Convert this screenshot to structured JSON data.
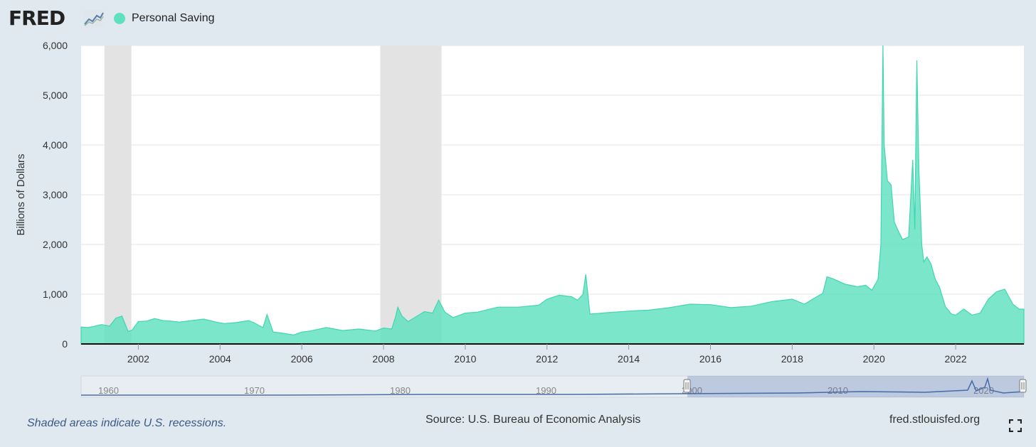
{
  "header": {
    "logo_text": "FRED",
    "legend_label": "Personal Saving",
    "series_color": "#5fe1c0"
  },
  "footer": {
    "recession_note": "Shaded areas indicate U.S. recessions.",
    "source": "Source: U.S. Bureau of Economic Analysis",
    "site": "fred.stlouisfed.org"
  },
  "chart_data": {
    "type": "area",
    "ylabel": "Billions of Dollars",
    "ylim": [
      0,
      6000
    ],
    "xlim": [
      2000.6,
      2023.67
    ],
    "yticks": [
      "0",
      "1,000",
      "2,000",
      "3,000",
      "4,000",
      "5,000",
      "6,000"
    ],
    "xticks": [
      "2002",
      "2004",
      "2006",
      "2008",
      "2010",
      "2012",
      "2014",
      "2016",
      "2018",
      "2020",
      "2022"
    ],
    "grid": true,
    "recessions": [
      [
        2001.17,
        2001.83
      ],
      [
        2007.92,
        2009.42
      ]
    ],
    "series": [
      {
        "name": "Personal Saving",
        "x": [
          2000.6,
          2000.75,
          2000.9,
          2001.0,
          2001.1,
          2001.3,
          2001.45,
          2001.6,
          2001.75,
          2001.85,
          2002.0,
          2002.2,
          2002.4,
          2002.6,
          2002.8,
          2003.0,
          2003.3,
          2003.6,
          2003.9,
          2004.1,
          2004.4,
          2004.7,
          2004.85,
          2004.95,
          2005.05,
          2005.15,
          2005.3,
          2005.5,
          2005.8,
          2006.0,
          2006.2,
          2006.6,
          2007.0,
          2007.4,
          2007.8,
          2008.0,
          2008.2,
          2008.3,
          2008.35,
          2008.45,
          2008.6,
          2008.8,
          2009.0,
          2009.2,
          2009.35,
          2009.5,
          2009.7,
          2010.0,
          2010.3,
          2010.8,
          2011.3,
          2011.8,
          2012.0,
          2012.3,
          2012.6,
          2012.75,
          2012.88,
          2012.95,
          2013.05,
          2013.5,
          2014.0,
          2014.5,
          2015.0,
          2015.5,
          2016.0,
          2016.5,
          2017.0,
          2017.5,
          2018.0,
          2018.3,
          2018.5,
          2018.75,
          2018.85,
          2019.0,
          2019.3,
          2019.6,
          2019.8,
          2019.95,
          2020.1,
          2020.17,
          2020.22,
          2020.25,
          2020.33,
          2020.42,
          2020.5,
          2020.58,
          2020.7,
          2020.85,
          2020.95,
          2021.0,
          2021.05,
          2021.1,
          2021.17,
          2021.22,
          2021.3,
          2021.4,
          2021.5,
          2021.6,
          2021.75,
          2021.9,
          2022.0,
          2022.2,
          2022.4,
          2022.6,
          2022.8,
          2023.0,
          2023.2,
          2023.4,
          2023.55,
          2023.67
        ],
        "values": [
          340,
          330,
          350,
          370,
          390,
          360,
          520,
          560,
          250,
          280,
          450,
          460,
          510,
          470,
          460,
          440,
          470,
          500,
          440,
          410,
          430,
          470,
          420,
          370,
          330,
          590,
          240,
          220,
          180,
          240,
          260,
          330,
          270,
          300,
          260,
          320,
          300,
          560,
          740,
          560,
          450,
          550,
          650,
          620,
          880,
          640,
          530,
          620,
          640,
          740,
          740,
          780,
          900,
          980,
          950,
          880,
          1000,
          1400,
          600,
          630,
          660,
          680,
          730,
          800,
          790,
          730,
          760,
          850,
          900,
          800,
          900,
          1020,
          1350,
          1310,
          1200,
          1150,
          1180,
          1080,
          1300,
          2000,
          6000,
          4000,
          3280,
          3200,
          2450,
          2300,
          2100,
          2150,
          3700,
          2300,
          5700,
          3500,
          2000,
          1650,
          1750,
          1600,
          1300,
          1150,
          750,
          600,
          580,
          700,
          580,
          620,
          900,
          1050,
          1100,
          800,
          700,
          700
        ]
      }
    ]
  }
}
